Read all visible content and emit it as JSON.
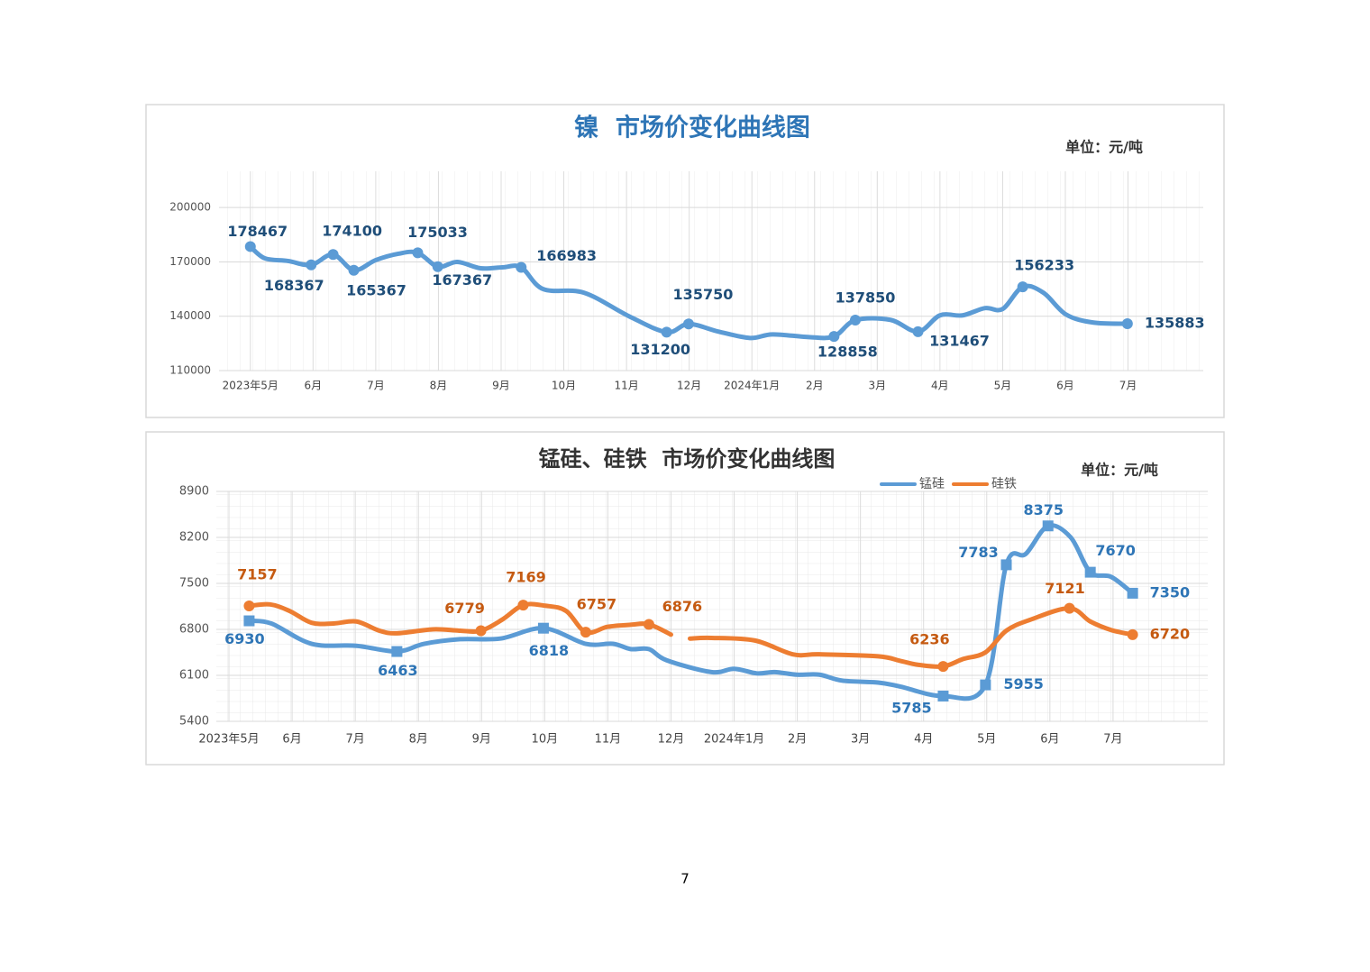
{
  "chart_data": [
    {
      "type": "line",
      "title": "镍  市场价变化曲线图",
      "annotation": "单位：元/吨",
      "xlim": [
        -0.5,
        15.2
      ],
      "ylim": [
        110000,
        220000
      ],
      "yticks": [
        110000,
        140000,
        170000,
        200000
      ],
      "xticks": [
        {
          "value": 0,
          "label": "2023年5月"
        },
        {
          "value": 1,
          "label": "6月"
        },
        {
          "value": 2,
          "label": "7月"
        },
        {
          "value": 3,
          "label": "8月"
        },
        {
          "value": 4,
          "label": "9月"
        },
        {
          "value": 5,
          "label": "10月"
        },
        {
          "value": 6,
          "label": "11月"
        },
        {
          "value": 7,
          "label": "12月"
        },
        {
          "value": 8,
          "label": "2024年1月"
        },
        {
          "value": 9,
          "label": "2月"
        },
        {
          "value": 10,
          "label": "3月"
        },
        {
          "value": 11,
          "label": "4月"
        },
        {
          "value": 12,
          "label": "5月"
        },
        {
          "value": 13,
          "label": "6月"
        },
        {
          "value": 14,
          "label": "7月"
        }
      ],
      "grid": true,
      "series": [
        {
          "color": "#5b9bd5",
          "label_color": "#1f4e79",
          "marker": "circle",
          "x": [
            0,
            0.23,
            0.6,
            0.97,
            1.32,
            1.65,
            2.0,
            2.36,
            2.67,
            2.99,
            3.3,
            3.67,
            4.02,
            4.32,
            4.67,
            5.32,
            6.04,
            6.64,
            6.99,
            7.47,
            7.97,
            8.33,
            8.91,
            9.31,
            9.65,
            10.21,
            10.65,
            11.0,
            11.36,
            11.72,
            12.0,
            12.32,
            12.65,
            13.01,
            13.45,
            13.99
          ],
          "values": [
            178467,
            172000,
            170500,
            168367,
            174100,
            165367,
            171000,
            174500,
            175033,
            167367,
            170000,
            166500,
            167000,
            166983,
            155000,
            153000,
            140000,
            131200,
            135750,
            131500,
            128000,
            130000,
            128500,
            128858,
            137850,
            138000,
            131467,
            140500,
            140500,
            144500,
            144000,
            156233,
            153000,
            141000,
            136500,
            135883
          ]
        }
      ]
    },
    {
      "type": "line",
      "title": "锰硅、硅铁  市场价变化曲线图",
      "annotation": "单位：元/吨",
      "xlim": [
        -0.2,
        15.5
      ],
      "ylim": [
        5400,
        8900
      ],
      "yticks": [
        5400,
        6100,
        6800,
        7500,
        8200,
        8900
      ],
      "xticks": [
        {
          "value": 0,
          "label": "2023年5月"
        },
        {
          "value": 1,
          "label": "6月"
        },
        {
          "value": 2,
          "label": "7月"
        },
        {
          "value": 3,
          "label": "8月"
        },
        {
          "value": 4,
          "label": "9月"
        },
        {
          "value": 5,
          "label": "10月"
        },
        {
          "value": 6,
          "label": "11月"
        },
        {
          "value": 7,
          "label": "12月"
        },
        {
          "value": 8,
          "label": "2024年1月"
        },
        {
          "value": 9,
          "label": "2月"
        },
        {
          "value": 10,
          "label": "3月"
        },
        {
          "value": 11,
          "label": "4月"
        },
        {
          "value": 12,
          "label": "5月"
        },
        {
          "value": 13,
          "label": "6月"
        },
        {
          "value": 14,
          "label": "7月"
        }
      ],
      "grid": true,
      "legend": "top-right",
      "series": [
        {
          "name": "锰硅",
          "color": "#5b9bd5",
          "label_color": "#2e75b6",
          "marker": "square",
          "x": [
            0.32,
            0.67,
            1.31,
            2.02,
            2.66,
            3.09,
            3.66,
            4.3,
            4.98,
            5.65,
            6.08,
            6.36,
            6.65,
            6.93,
            7.64,
            8.0,
            8.36,
            8.64,
            8.99,
            9.35,
            9.71,
            10.28,
            10.63,
            11.31,
            11.98,
            12.31,
            12.62,
            12.97,
            13.33,
            13.64,
            13.97,
            14.31
          ],
          "values": [
            6930,
            6890,
            6580,
            6550,
            6463,
            6580,
            6650,
            6660,
            6818,
            6580,
            6580,
            6500,
            6500,
            6330,
            6150,
            6200,
            6130,
            6150,
            6110,
            6110,
            6020,
            5990,
            5930,
            5785,
            5955,
            7783,
            7950,
            8375,
            8200,
            7670,
            7600,
            7350
          ]
        },
        {
          "name": "硅铁",
          "color": "#ed7d31",
          "label_color": "#c55a11",
          "marker": "circle",
          "x": [
            0.32,
            0.65,
            0.96,
            1.31,
            1.66,
            2.02,
            2.38,
            2.66,
            3.23,
            3.66,
            3.99,
            4.33,
            4.66,
            5.01,
            5.34,
            5.65,
            6.0,
            6.36,
            6.65,
            7.0,
            7.15,
            7.3,
            7.64,
            8.33,
            8.93,
            9.35,
            10.28,
            10.63,
            10.92,
            11.31,
            11.63,
            11.98,
            12.31,
            12.7,
            13.31,
            13.64,
            13.97,
            14.31
          ],
          "values": [
            7157,
            7180,
            7080,
            6900,
            6890,
            6920,
            6780,
            6740,
            6800,
            6780,
            6779,
            6950,
            7169,
            7160,
            7080,
            6757,
            6840,
            6870,
            6876,
            6720,
            null,
            6660,
            6670,
            6630,
            6420,
            6420,
            6390,
            6320,
            6260,
            6236,
            6350,
            6450,
            6780,
            6950,
            7121,
            6920,
            6790,
            6720
          ]
        }
      ]
    }
  ],
  "page_number": "7"
}
